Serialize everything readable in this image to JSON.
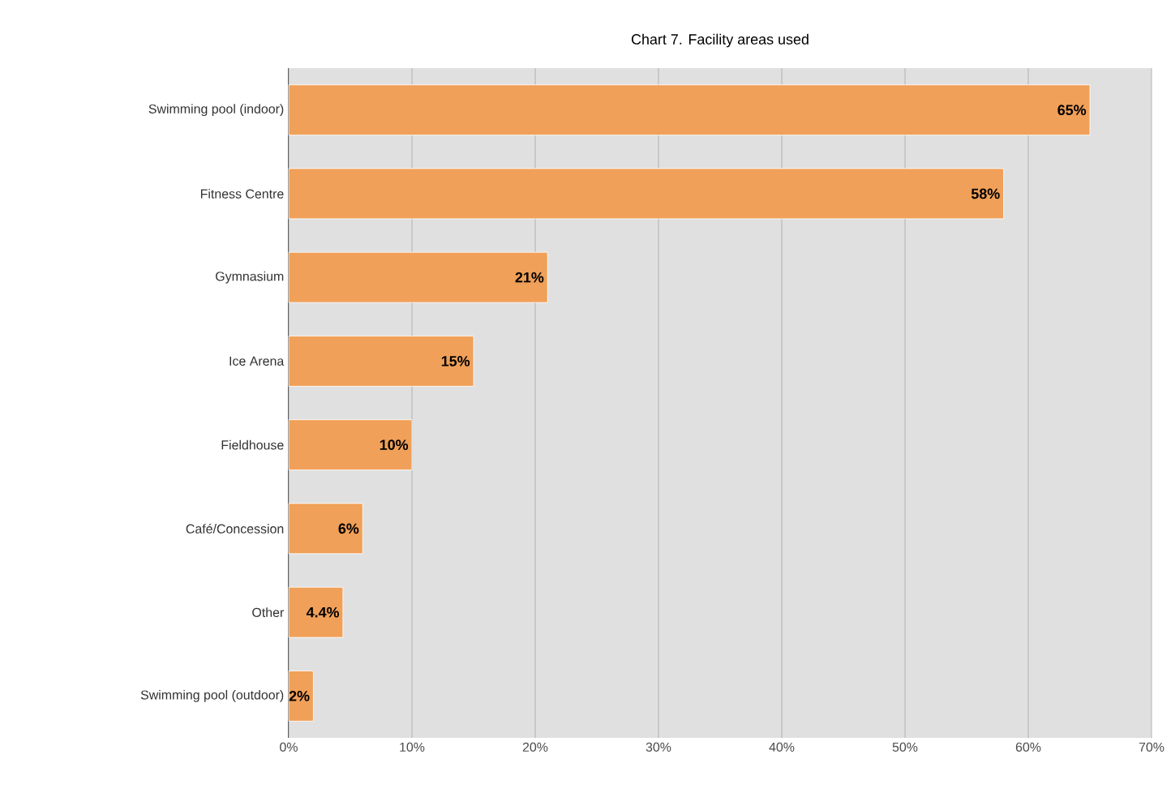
{
  "chart_data": {
    "type": "bar",
    "orientation": "horizontal",
    "title": "Chart 7.        Facility areas used",
    "categories": [
      "Swimming pool (indoor)",
      "Fitness Centre",
      "Gymnasium",
      "Ice Arena",
      "Fieldhouse",
      "Café/Concession",
      "Other",
      "Swimming pool (outdoor)"
    ],
    "values": [
      65,
      58,
      21,
      15,
      10,
      6,
      4.4,
      2
    ],
    "value_labels": [
      "65%",
      "58%",
      "21%",
      "15%",
      "10%",
      "6%",
      "4.4%",
      "2%"
    ],
    "color": "#f0a058",
    "xlim": [
      0,
      70
    ],
    "xticks": [
      {
        "value": 0,
        "label": "0%"
      },
      {
        "value": 10,
        "label": "10%"
      },
      {
        "value": 20,
        "label": "20%"
      },
      {
        "value": 30,
        "label": "30%"
      },
      {
        "value": 40,
        "label": "40%"
      },
      {
        "value": 50,
        "label": "50%"
      },
      {
        "value": 60,
        "label": "60%"
      },
      {
        "value": 70,
        "label": "70%"
      }
    ],
    "grid": "x"
  }
}
